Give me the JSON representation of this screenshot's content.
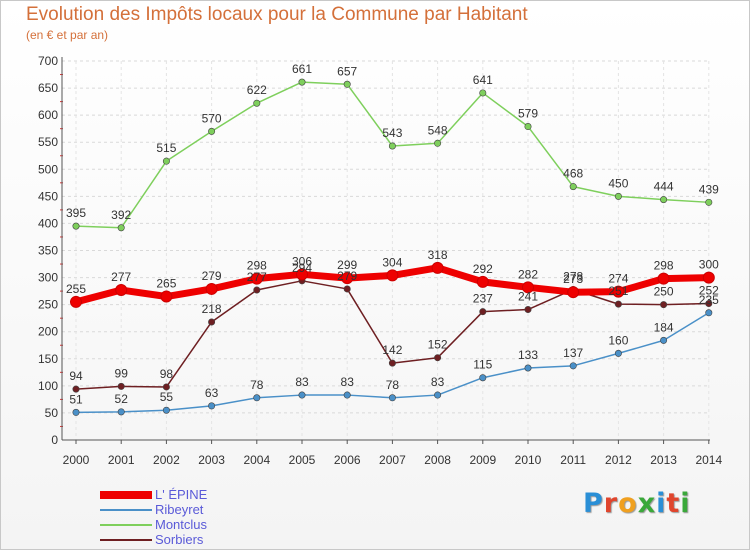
{
  "header": {
    "title": "Evolution des Impôts locaux pour la Commune par Habitant",
    "subtitle": "(en € et par an)"
  },
  "logo": {
    "text": "Proxiti",
    "colors": [
      "#2a8fd6",
      "#e0452d",
      "#f0a020",
      "#3aa83a",
      "#2a8fd6",
      "#e0452d",
      "#3aa83a"
    ]
  },
  "chart_data": {
    "type": "line",
    "title": "Evolution des Impôts locaux pour la Commune par Habitant",
    "subtitle": "(en € et par an)",
    "x": [
      "2000",
      "2001",
      "2002",
      "2003",
      "2004",
      "2005",
      "2006",
      "2007",
      "2008",
      "2009",
      "2010",
      "2011",
      "2012",
      "2013",
      "2014"
    ],
    "ylim": [
      0,
      700
    ],
    "yticks": [
      0,
      50,
      100,
      150,
      200,
      250,
      300,
      350,
      400,
      450,
      500,
      550,
      600,
      650,
      700
    ],
    "grid": true,
    "legend_position": "bottom-left",
    "series": [
      {
        "name": "Montclus",
        "color": "#7ecf5c",
        "values": [
          395,
          392,
          515,
          570,
          622,
          661,
          657,
          543,
          548,
          641,
          579,
          468,
          450,
          444,
          439
        ]
      },
      {
        "name": "Sorbiers",
        "color": "#6e1f22",
        "values": [
          94,
          99,
          98,
          218,
          277,
          294,
          279,
          142,
          152,
          237,
          241,
          278,
          251,
          250,
          252
        ]
      },
      {
        "name": "Ribeyret",
        "color": "#4a90c8",
        "values": [
          51,
          52,
          55,
          63,
          78,
          83,
          83,
          78,
          83,
          115,
          133,
          137,
          160,
          184,
          235
        ]
      },
      {
        "name": "L' ÉPINE",
        "color": "#ee0000",
        "values": [
          255,
          277,
          265,
          279,
          298,
          306,
          299,
          304,
          318,
          292,
          282,
          273,
          274,
          298,
          300
        ]
      }
    ],
    "legend_order": [
      "L' ÉPINE",
      "Ribeyret",
      "Montclus",
      "Sorbiers"
    ]
  }
}
